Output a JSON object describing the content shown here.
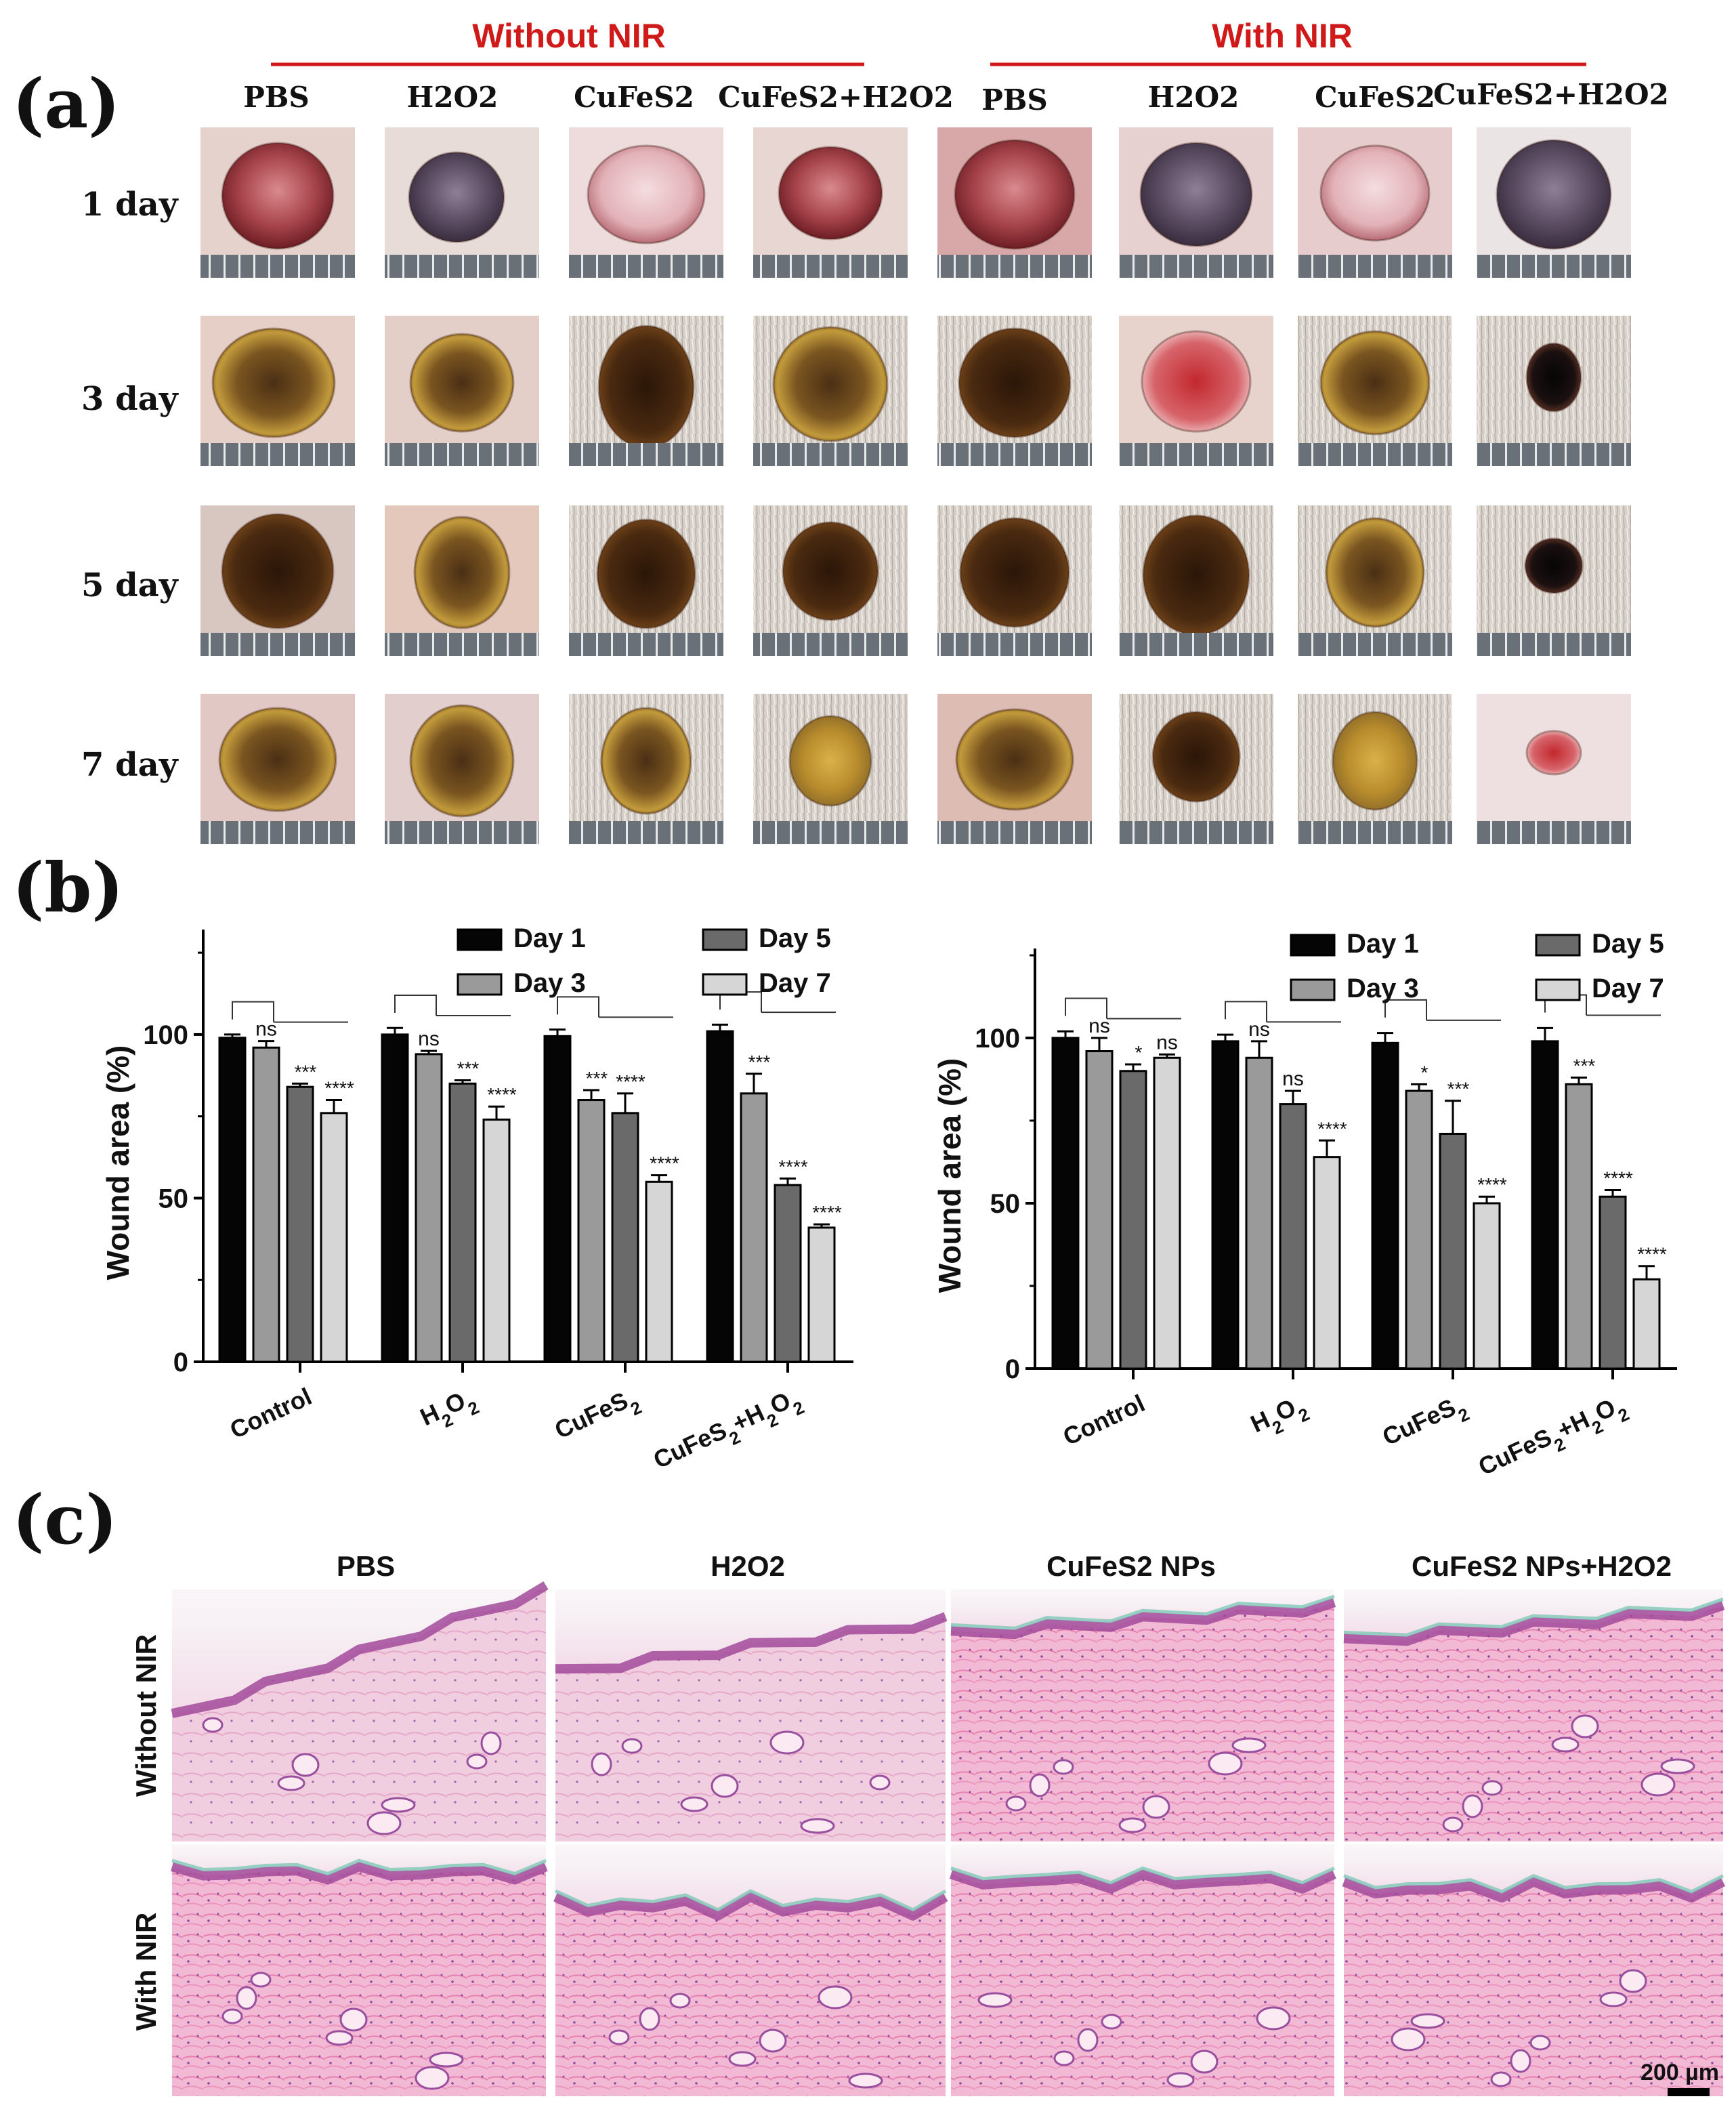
{
  "panels": {
    "a": "(a)",
    "b": "(b)",
    "c": "(c)"
  },
  "panel_a": {
    "group_without": "Without NIR",
    "group_with": "With NIR",
    "columns": [
      "PBS",
      "H2O2",
      "CuFeS2",
      "CuFeS2+H2O2"
    ],
    "rows": [
      "1 day",
      "3 day",
      "5 day",
      "7 day"
    ]
  },
  "colors": {
    "accent_red": "#d01a1a",
    "day1": "#050505",
    "day3": "#9a9a9a",
    "day5": "#6a6a6a",
    "day7": "#d6d6d6"
  },
  "chart_data": [
    {
      "type": "bar",
      "title": "Without NIR",
      "ylabel": "Wound area (%)",
      "ylim": [
        0,
        130
      ],
      "yticks": [
        "0",
        "50",
        "100"
      ],
      "categories": [
        "Control",
        "H2O2",
        "CuFeS2",
        "CuFeS2+H2O2"
      ],
      "legend": [
        "Day 1",
        "Day 3",
        "Day 5",
        "Day 7"
      ],
      "series": [
        {
          "name": "Day 1",
          "values": [
            99,
            100,
            99.5,
            101
          ],
          "errors": [
            1,
            2,
            2,
            2
          ]
        },
        {
          "name": "Day 3",
          "values": [
            96,
            94,
            80,
            82
          ],
          "errors": [
            2,
            1,
            3,
            6
          ]
        },
        {
          "name": "Day 5",
          "values": [
            84,
            85,
            76,
            54
          ],
          "errors": [
            1,
            1,
            6,
            2
          ]
        },
        {
          "name": "Day 7",
          "values": [
            76,
            74,
            55,
            41
          ],
          "errors": [
            4,
            4,
            2,
            1
          ]
        }
      ],
      "significance": [
        [
          "",
          "ns",
          "***",
          "****"
        ],
        [
          "",
          "ns",
          "***",
          "****"
        ],
        [
          "",
          "***",
          "****",
          "****"
        ],
        [
          "",
          "***",
          "****",
          "****"
        ]
      ]
    },
    {
      "type": "bar",
      "title": "With NIR",
      "ylabel": "Wound area (%)",
      "ylim": [
        0,
        125
      ],
      "yticks": [
        "0",
        "50",
        "100"
      ],
      "categories": [
        "Control",
        "H2O2",
        "CuFeS2",
        "CuFeS2+H2O2"
      ],
      "legend": [
        "Day 1",
        "Day 3",
        "Day 5",
        "Day 7"
      ],
      "series": [
        {
          "name": "Day 1",
          "values": [
            100,
            99,
            98.5,
            99
          ],
          "errors": [
            2,
            2,
            3,
            4
          ]
        },
        {
          "name": "Day 3",
          "values": [
            96,
            94,
            84,
            86
          ],
          "errors": [
            4,
            5,
            2,
            2
          ]
        },
        {
          "name": "Day 5",
          "values": [
            90,
            80,
            71,
            52
          ],
          "errors": [
            2,
            4,
            10,
            2
          ]
        },
        {
          "name": "Day 7",
          "values": [
            94,
            64,
            50,
            27
          ],
          "errors": [
            1,
            5,
            2,
            4
          ]
        }
      ],
      "significance": [
        [
          "",
          "ns",
          "*",
          "ns"
        ],
        [
          "",
          "ns",
          "ns",
          "****"
        ],
        [
          "",
          "*",
          "***",
          "****"
        ],
        [
          "",
          "***",
          "****",
          "****"
        ]
      ]
    }
  ],
  "panel_c": {
    "columns": [
      "PBS",
      "H2O2",
      "CuFeS2 NPs",
      "CuFeS2 NPs+H2O2"
    ],
    "rows": [
      "Without NIR",
      "With NIR"
    ],
    "scale_bar": "200 µm"
  }
}
